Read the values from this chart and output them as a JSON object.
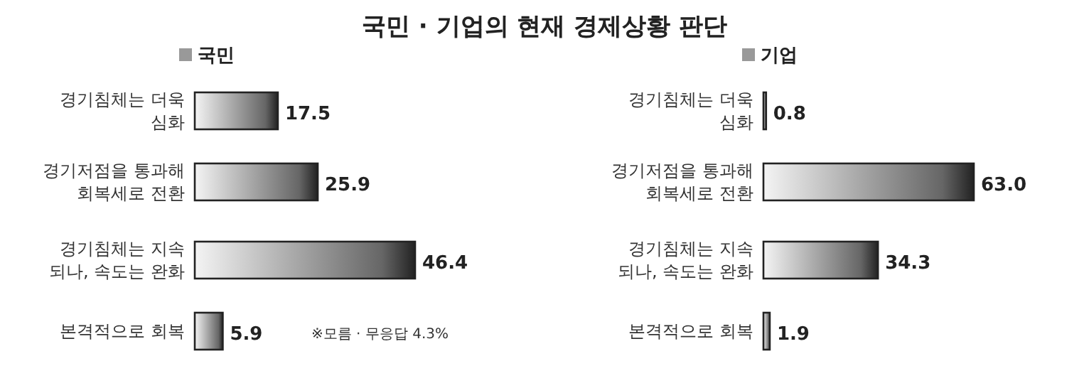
{
  "chart_data": [
    {
      "type": "bar",
      "orientation": "horizontal",
      "title": "국민 · 기업의 현재 경제상황 판단",
      "subtitle": "국민",
      "categories": [
        "경기침체는 더욱\n심화",
        "경기저점을 통과해\n회복세로 전환",
        "경기침체는 지속\n되나, 속도는 완화",
        "본격적으로 회복"
      ],
      "values": [
        17.5,
        25.9,
        46.4,
        5.9
      ],
      "value_labels": [
        "17.5",
        "25.9",
        "46.4",
        "5.9"
      ],
      "color": "#222222",
      "annotations": [
        "※모름 · 무응답 4.3%"
      ]
    },
    {
      "type": "bar",
      "orientation": "horizontal",
      "subtitle": "기업",
      "categories": [
        "경기침체는 더욱\n심화",
        "경기저점을 통과해\n회복세로 전환",
        "경기침체는 지속\n되나, 속도는 완화",
        "본격적으로 회복"
      ],
      "values": [
        0.8,
        63.0,
        34.3,
        1.9
      ],
      "value_labels": [
        "0.8",
        "63.0",
        "34.3",
        "1.9"
      ],
      "color": "#222222"
    }
  ]
}
